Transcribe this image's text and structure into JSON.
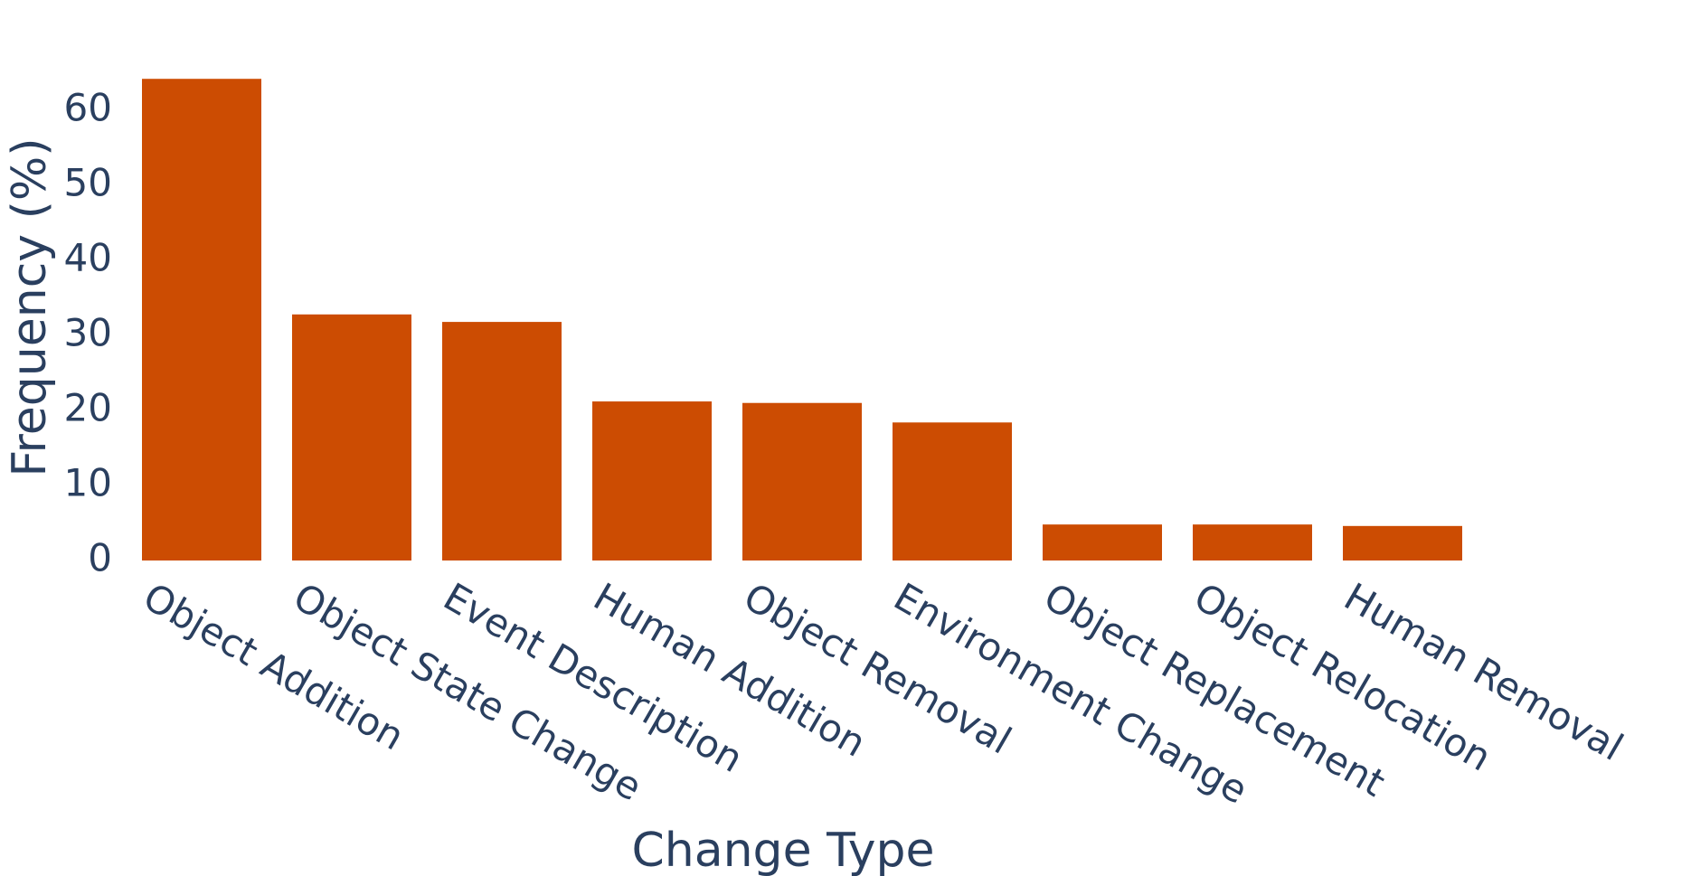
{
  "chart_data": {
    "type": "bar",
    "x_label": "Change Type",
    "y_label": "Frequency (%)",
    "categories": [
      "Object Addition",
      "Object State Change",
      "Event Description",
      "Human Addition",
      "Object Removal",
      "Environment Change",
      "Object Replacement",
      "Object Relocation",
      "Human Removal"
    ],
    "values": [
      64.2,
      32.8,
      31.8,
      21.2,
      21.0,
      18.4,
      4.8,
      4.8,
      4.6
    ],
    "color": "#cc4c02",
    "ylim": [
      0,
      67.6
    ],
    "yticks": [
      0,
      10,
      20,
      30,
      40,
      50,
      60
    ],
    "grid": false
  }
}
